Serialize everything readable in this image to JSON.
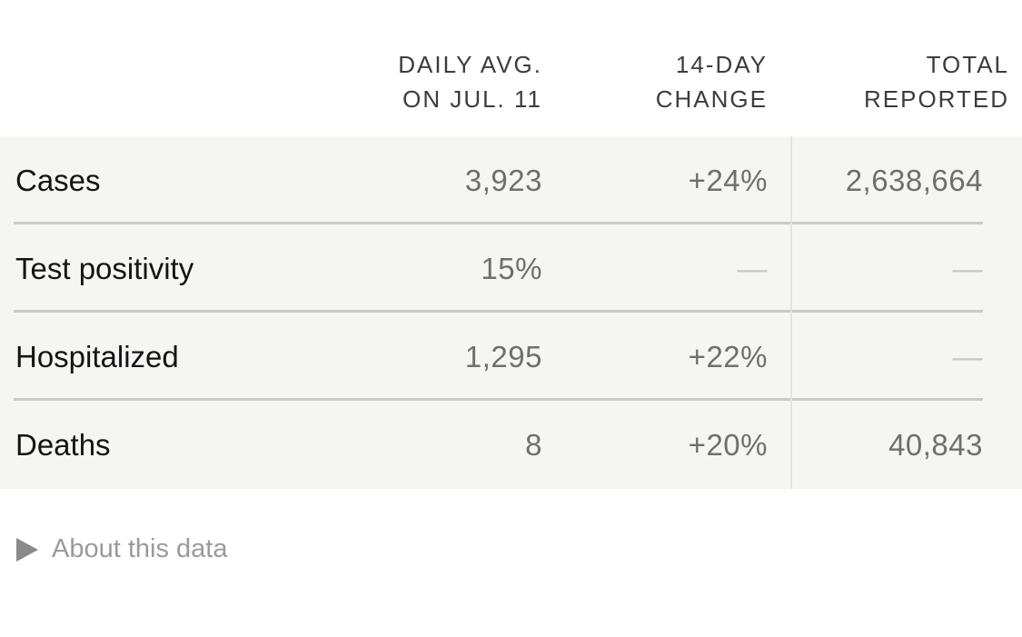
{
  "chart_data": {
    "type": "table",
    "column_headers": [
      {
        "line1": "DAILY AVG.",
        "line2": "ON JUL. 11"
      },
      {
        "line1": "14-DAY",
        "line2": "CHANGE"
      },
      {
        "line1": "TOTAL",
        "line2": "REPORTED"
      }
    ],
    "rows": [
      {
        "label": "Cases",
        "values": [
          "3,923",
          "+24%",
          "2,638,664"
        ]
      },
      {
        "label": "Test positivity",
        "values": [
          "15%",
          "—",
          "—"
        ]
      },
      {
        "label": "Hospitalized",
        "values": [
          "1,295",
          "+22%",
          "—"
        ]
      },
      {
        "label": "Deaths",
        "values": [
          "8",
          "+20%",
          "40,843"
        ]
      }
    ]
  },
  "footer": {
    "about_label": "About this data",
    "expander_icon": "triangle-right"
  },
  "colors": {
    "band_background": "#f5f5f4",
    "row_label": "#141414",
    "value_text": "#6f6f6f",
    "dash_text": "#c7c7c7",
    "header_text": "#3c3c3c",
    "row_separator": "#c9c9c9",
    "column_divider": "#e3e3e2",
    "about_text": "#9a9a9a"
  }
}
